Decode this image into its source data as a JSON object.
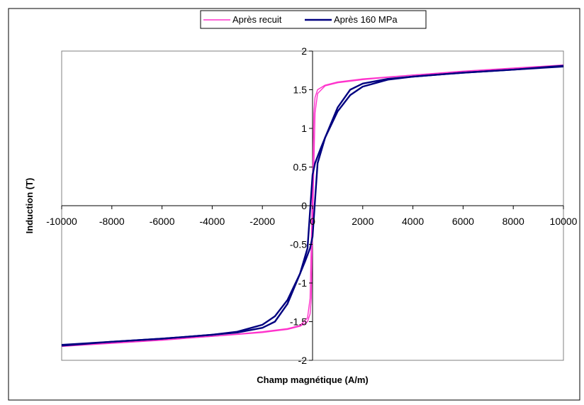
{
  "chart_data": {
    "type": "line",
    "title": "",
    "xlabel": "Champ magnétique (A/m)",
    "ylabel": "Induction (T)",
    "xlim": [
      -10000,
      10000
    ],
    "ylim": [
      -2,
      2
    ],
    "x_ticks": [
      -10000,
      -8000,
      -6000,
      -4000,
      -2000,
      0,
      2000,
      4000,
      6000,
      8000,
      10000
    ],
    "y_ticks": [
      2,
      1.5,
      1,
      0.5,
      0,
      -0.5,
      -1,
      -1.5,
      -2
    ],
    "grid": false,
    "legend_position": "top-center",
    "series": [
      {
        "name": "Après recuit",
        "color": "#ff33cc",
        "upper_branch": [
          [
            -10000,
            -1.81
          ],
          [
            -8000,
            -1.77
          ],
          [
            -6000,
            -1.73
          ],
          [
            -4000,
            -1.69
          ],
          [
            -2000,
            -1.63
          ],
          [
            -1000,
            -1.59
          ],
          [
            -500,
            -1.55
          ],
          [
            -200,
            -1.45
          ],
          [
            -100,
            -1.2
          ],
          [
            -50,
            -0.5
          ],
          [
            0,
            0.25
          ],
          [
            50,
            1.2
          ],
          [
            100,
            1.4
          ],
          [
            200,
            1.5
          ],
          [
            500,
            1.56
          ],
          [
            1000,
            1.6
          ],
          [
            2000,
            1.64
          ],
          [
            4000,
            1.69
          ],
          [
            6000,
            1.74
          ],
          [
            8000,
            1.78
          ],
          [
            10000,
            1.82
          ]
        ],
        "lower_branch": [
          [
            -10000,
            -1.82
          ],
          [
            -8000,
            -1.78
          ],
          [
            -6000,
            -1.74
          ],
          [
            -4000,
            -1.69
          ],
          [
            -2000,
            -1.64
          ],
          [
            -1000,
            -1.6
          ],
          [
            -500,
            -1.56
          ],
          [
            -200,
            -1.5
          ],
          [
            -100,
            -1.4
          ],
          [
            -50,
            -1.2
          ],
          [
            0,
            -0.25
          ],
          [
            50,
            0.5
          ],
          [
            100,
            1.2
          ],
          [
            200,
            1.45
          ],
          [
            500,
            1.55
          ],
          [
            1000,
            1.59
          ],
          [
            2000,
            1.63
          ],
          [
            4000,
            1.69
          ],
          [
            6000,
            1.73
          ],
          [
            8000,
            1.77
          ],
          [
            10000,
            1.81
          ]
        ]
      },
      {
        "name": "Après 160 MPa",
        "color": "#000080",
        "upper_branch": [
          [
            -10000,
            -1.8
          ],
          [
            -8000,
            -1.76
          ],
          [
            -6000,
            -1.72
          ],
          [
            -4000,
            -1.67
          ],
          [
            -3000,
            -1.63
          ],
          [
            -2000,
            -1.54
          ],
          [
            -1500,
            -1.43
          ],
          [
            -1000,
            -1.22
          ],
          [
            -500,
            -0.88
          ],
          [
            -200,
            -0.55
          ],
          [
            0,
            0.4
          ],
          [
            100,
            0.55
          ],
          [
            300,
            0.72
          ],
          [
            500,
            0.88
          ],
          [
            1000,
            1.27
          ],
          [
            1500,
            1.5
          ],
          [
            2000,
            1.58
          ],
          [
            3000,
            1.64
          ],
          [
            4000,
            1.67
          ],
          [
            6000,
            1.72
          ],
          [
            8000,
            1.76
          ],
          [
            10000,
            1.81
          ]
        ],
        "lower_branch": [
          [
            -10000,
            -1.81
          ],
          [
            -8000,
            -1.76
          ],
          [
            -6000,
            -1.72
          ],
          [
            -4000,
            -1.67
          ],
          [
            -3000,
            -1.64
          ],
          [
            -2000,
            -1.58
          ],
          [
            -1500,
            -1.5
          ],
          [
            -1000,
            -1.27
          ],
          [
            -500,
            -0.88
          ],
          [
            -300,
            -0.72
          ],
          [
            -100,
            -0.55
          ],
          [
            0,
            -0.4
          ],
          [
            200,
            0.55
          ],
          [
            500,
            0.88
          ],
          [
            1000,
            1.22
          ],
          [
            1500,
            1.43
          ],
          [
            2000,
            1.54
          ],
          [
            3000,
            1.63
          ],
          [
            4000,
            1.67
          ],
          [
            6000,
            1.72
          ],
          [
            8000,
            1.76
          ],
          [
            10000,
            1.8
          ]
        ]
      }
    ]
  }
}
